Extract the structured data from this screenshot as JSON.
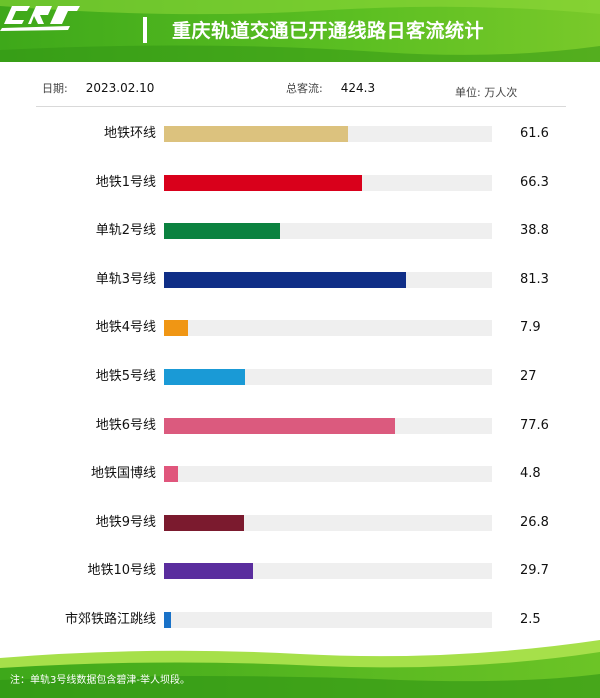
{
  "header": {
    "title": "重庆轨道交通已开通线路日客流统计"
  },
  "info": {
    "date_label": "日期:",
    "date_value": "2023.02.10",
    "total_label": "总客流:",
    "total_value": "424.3",
    "unit_label": "单位: 万人次"
  },
  "colors": {
    "header_green": "#4db51f",
    "accent_green": "#9bdc2c"
  },
  "chart_data": {
    "type": "bar",
    "orientation": "horizontal",
    "title": "",
    "xlabel": "",
    "ylabel": "",
    "xlim": [
      0,
      110
    ],
    "grid": false,
    "categories": [
      "地铁环线",
      "地铁1号线",
      "单轨2号线",
      "单轨3号线",
      "地铁4号线",
      "地铁5号线",
      "地铁6号线",
      "地铁国博线",
      "地铁9号线",
      "地铁10号线",
      "市郊铁路江跳线"
    ],
    "values": [
      61.6,
      66.3,
      38.8,
      81.3,
      7.9,
      27,
      77.6,
      4.8,
      26.8,
      29.7,
      2.5
    ],
    "value_labels": [
      "61.6",
      "66.3",
      "38.8",
      "81.3",
      "7.9",
      "27",
      "77.6",
      "4.8",
      "26.8",
      "29.7",
      "2.5"
    ],
    "colors": [
      "#dcc27e",
      "#d9001b",
      "#0b8240",
      "#0f2e87",
      "#f09614",
      "#1a9ad6",
      "#db5a7e",
      "#e0567c",
      "#7b1a2e",
      "#5a2d9e",
      "#1a72c8"
    ]
  },
  "footer": {
    "note": "注：单轨3号线数据包含碧津-举人坝段。"
  }
}
